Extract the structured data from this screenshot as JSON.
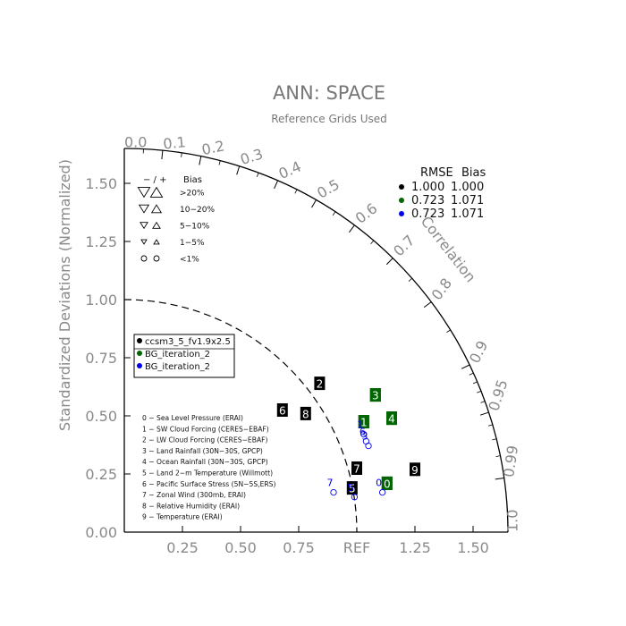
{
  "chart_data": {
    "type": "taylor",
    "title": "ANN: SPACE",
    "subtitle": "Reference Grids Used",
    "ylabel": "Standardized Deviations (Normalized)",
    "angular_label": "Correlation",
    "ref_label": "REF",
    "xlim": [
      0,
      1.65
    ],
    "ylim": [
      0,
      1.65
    ],
    "std_ticks_y": [
      "0.00",
      "0.25",
      "0.50",
      "0.75",
      "1.00",
      "1.25",
      "1.50"
    ],
    "std_ticks_x": [
      "0.25",
      "0.50",
      "0.75",
      "1.25",
      "1.50"
    ],
    "correlation_ticks": [
      "0.0",
      "0.1",
      "0.2",
      "0.3",
      "0.4",
      "0.5",
      "0.6",
      "0.7",
      "0.8",
      "0.9",
      "0.95",
      "0.99",
      "1.0"
    ],
    "reference_arc_radius": 1.0,
    "bias_key": {
      "header_sign": "−  /  +",
      "header_bias": "Bias",
      "rows": [
        {
          "label": ">20%",
          "size": 1.0
        },
        {
          "label": "10−20%",
          "size": 0.8
        },
        {
          "label": "5−10%",
          "size": 0.62
        },
        {
          "label": "1−5%",
          "size": 0.45
        },
        {
          "label": "<1%",
          "size": 0.45,
          "circle": true
        }
      ]
    },
    "summary_table": {
      "header_rmse": "RMSE",
      "header_bias": "Bias",
      "rows": [
        {
          "color": "#000000",
          "rmse": "1.000",
          "bias": "1.000"
        },
        {
          "color": "#006600",
          "rmse": "0.723",
          "bias": "1.071"
        },
        {
          "color": "#0000ee",
          "rmse": "0.723",
          "bias": "1.071"
        }
      ]
    },
    "legend": {
      "placement": "left",
      "entries": [
        {
          "name": "ccsm3_5_fv1.9x2.5",
          "color": "#000000"
        },
        {
          "name": "BG_iteration_2",
          "color": "#006600"
        },
        {
          "name": "BG_iteration_2",
          "color": "#0000ee"
        }
      ]
    },
    "variables": [
      "0 − Sea Level Pressure (ERAI)",
      "1 − SW Cloud Forcing (CERES−EBAF)",
      "2 − LW Cloud Forcing (CERES−EBAF)",
      "3 − Land Rainfall (30N−30S, GPCP)",
      "4 − Ocean Rainfall (30N−30S, GPCP)",
      "5 − Land 2−m Temperature (Willmott)",
      "6 − Pacific Surface Stress (5N−5S,ERS)",
      "7 − Zonal Wind (300mb, ERAI)",
      "8 − Relative Humidity (ERAI)",
      "9 − Temperature (ERAI)"
    ],
    "series": [
      {
        "name": "ccsm3_5_fv1.9x2.5",
        "color": "#000000",
        "points": [
          {
            "label": "0",
            "x": 1.13,
            "y": 0.21
          },
          {
            "label": "1",
            "x": 1.03,
            "y": 0.475
          },
          {
            "label": "2",
            "x": 0.84,
            "y": 0.64
          },
          {
            "label": "3",
            "x": 1.08,
            "y": 0.59
          },
          {
            "label": "4",
            "x": 1.15,
            "y": 0.49
          },
          {
            "label": "5",
            "x": 0.98,
            "y": 0.19
          },
          {
            "label": "6",
            "x": 0.68,
            "y": 0.525
          },
          {
            "label": "7",
            "x": 1.0,
            "y": 0.275
          },
          {
            "label": "8",
            "x": 0.78,
            "y": 0.51
          },
          {
            "label": "9",
            "x": 1.25,
            "y": 0.27
          }
        ]
      },
      {
        "name": "BG_iteration_2",
        "color": "#006600",
        "points": [
          {
            "label": "0",
            "x": 1.13,
            "y": 0.21
          },
          {
            "label": "1",
            "x": 1.03,
            "y": 0.475
          },
          {
            "label": "3",
            "x": 1.08,
            "y": 0.59
          },
          {
            "label": "4",
            "x": 1.15,
            "y": 0.49
          }
        ]
      },
      {
        "name": "BG_iteration_2",
        "color": "#0000ee",
        "points": [
          {
            "label": "0",
            "x": 1.11,
            "y": 0.19
          },
          {
            "label": "1",
            "x": 1.03,
            "y": 0.44
          },
          {
            "label": "3",
            "x": 1.05,
            "y": 0.39
          },
          {
            "label": "5",
            "x": 0.99,
            "y": 0.17
          },
          {
            "label": "6",
            "x": 1.04,
            "y": 0.41
          },
          {
            "label": "7",
            "x": 0.9,
            "y": 0.19
          }
        ]
      }
    ]
  }
}
